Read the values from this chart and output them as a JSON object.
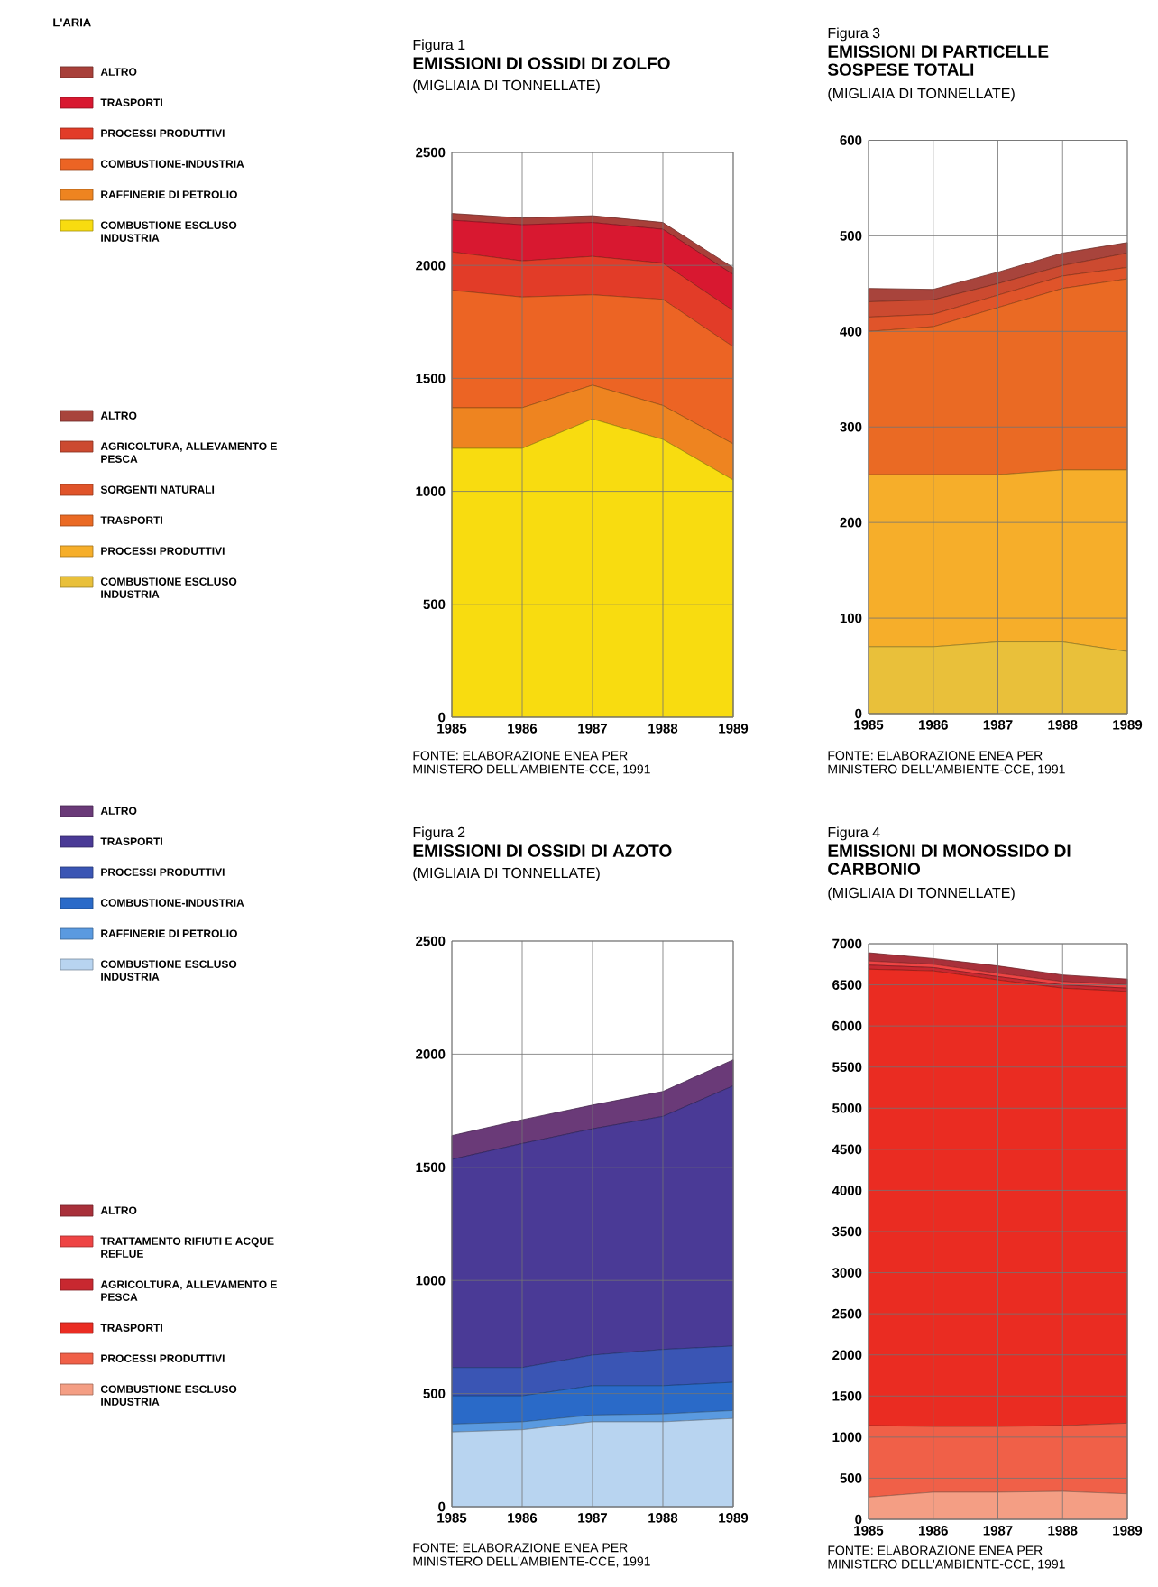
{
  "chart_data": [
    {
      "type": "area",
      "stacked": true,
      "title": "EMISSIONI DI OSSIDI DI ZOLFO",
      "subtitle": "(MIGLIAIA DI TONNELLATE)",
      "annotations": [
        "Figura 1",
        "FONTE: ELABORAZIONE ENEA PER MINISTERO DELL'AMBIENTE-CCE, 1991",
        "L'ARIA"
      ],
      "x": [
        1985,
        1986,
        1987,
        1988,
        1989
      ],
      "xlim": [
        1985,
        1989
      ],
      "xticks": [
        1985,
        1986,
        1987,
        1988,
        1989
      ],
      "ylim": [
        0,
        2500
      ],
      "yticks": [
        0,
        500,
        1000,
        1500,
        2000,
        2500
      ],
      "grid": true,
      "legend": "left",
      "series": [
        {
          "name": "COMBUSTIONE ESCLUSO INDUSTRIA",
          "color": "#f8dc10",
          "values": [
            1190,
            1190,
            1320,
            1230,
            1050
          ]
        },
        {
          "name": "RAFFINERIE DI PETROLIO",
          "color": "#ee8420",
          "values": [
            180,
            180,
            150,
            150,
            160
          ]
        },
        {
          "name": "COMBUSTIONE-INDUSTRIA",
          "color": "#ec6424",
          "values": [
            520,
            490,
            400,
            470,
            430
          ]
        },
        {
          "name": "PROCESSI PRODUTTIVI",
          "color": "#e23c28",
          "values": [
            170,
            160,
            170,
            160,
            160
          ]
        },
        {
          "name": "TRASPORTI",
          "color": "#d81830",
          "values": [
            140,
            160,
            150,
            150,
            160
          ]
        },
        {
          "name": "ALTRO",
          "color": "#a8403a",
          "values": [
            30,
            30,
            30,
            30,
            30
          ]
        }
      ]
    },
    {
      "type": "area",
      "stacked": true,
      "title": "EMISSIONI DI PARTICELLE SOSPESE TOTALI",
      "subtitle": "(MIGLIAIA DI TONNELLATE)",
      "annotations": [
        "Figura 3",
        "FONTE: ELABORAZIONE ENEA PER MINISTERO DELL'AMBIENTE-CCE, 1991"
      ],
      "x": [
        1985,
        1986,
        1987,
        1988,
        1989
      ],
      "xlim": [
        1985,
        1989
      ],
      "xticks": [
        1985,
        1986,
        1987,
        1988,
        1989
      ],
      "ylim": [
        0,
        600
      ],
      "yticks": [
        0,
        100,
        200,
        300,
        400,
        500,
        600
      ],
      "grid": true,
      "legend": "left",
      "series": [
        {
          "name": "COMBUSTIONE ESCLUSO INDUSTRIA",
          "color": "#e9c03a",
          "values": [
            70,
            70,
            75,
            75,
            65
          ]
        },
        {
          "name": "PROCESSI PRODUTTIVI",
          "color": "#f6ae2a",
          "values": [
            180,
            180,
            175,
            180,
            190
          ]
        },
        {
          "name": "TRASPORTI",
          "color": "#ea6a24",
          "values": [
            150,
            155,
            175,
            190,
            200
          ]
        },
        {
          "name": "SORGENTI NATURALI",
          "color": "#e0542a",
          "values": [
            15,
            13,
            13,
            13,
            12
          ]
        },
        {
          "name": "AGRICOLTURA, ALLEVAMENTO E PESCA",
          "color": "#cc4a30",
          "values": [
            16,
            15,
            12,
            11,
            15
          ]
        },
        {
          "name": "ALTRO",
          "color": "#a8443c",
          "values": [
            14,
            11,
            12,
            13,
            11
          ]
        }
      ]
    },
    {
      "type": "area",
      "stacked": true,
      "title": "EMISSIONI DI OSSIDI DI AZOTO",
      "subtitle": "(MIGLIAIA DI TONNELLATE)",
      "annotations": [
        "Figura 2",
        "FONTE: ELABORAZIONE ENEA PER MINISTERO DELL'AMBIENTE-CCE, 1991"
      ],
      "x": [
        1985,
        1986,
        1987,
        1988,
        1989
      ],
      "xlim": [
        1985,
        1989
      ],
      "xticks": [
        1985,
        1986,
        1987,
        1988,
        1989
      ],
      "ylim": [
        0,
        2500
      ],
      "yticks": [
        0,
        500,
        1000,
        1500,
        2000,
        2500
      ],
      "grid": true,
      "legend": "left",
      "series": [
        {
          "name": "COMBUSTIONE ESCLUSO INDUSTRIA",
          "color": "#b8d4f0",
          "values": [
            330,
            340,
            375,
            375,
            390
          ]
        },
        {
          "name": "RAFFINERIE DI PETROLIO",
          "color": "#5a9ae0",
          "values": [
            35,
            35,
            30,
            35,
            35
          ]
        },
        {
          "name": "COMBUSTIONE-INDUSTRIA",
          "color": "#2a6ac8",
          "values": [
            125,
            115,
            130,
            125,
            125
          ]
        },
        {
          "name": "PROCESSI PRODUTTIVI",
          "color": "#3a55b4",
          "values": [
            125,
            125,
            135,
            160,
            160
          ]
        },
        {
          "name": "TRASPORTI",
          "color": "#4a3a96",
          "values": [
            920,
            990,
            1000,
            1030,
            1150
          ]
        },
        {
          "name": "ALTRO",
          "color": "#6a3a78",
          "values": [
            105,
            105,
            105,
            110,
            115
          ]
        }
      ]
    },
    {
      "type": "area",
      "stacked": true,
      "title": "EMISSIONI DI MONOSSIDO DI CARBONIO",
      "subtitle": "(MIGLIAIA DI TONNELLATE)",
      "annotations": [
        "Figura 4",
        "FONTE: ELABORAZIONE ENEA PER MINISTERO DELL'AMBIENTE-CCE, 1991"
      ],
      "x": [
        1985,
        1986,
        1987,
        1988,
        1989
      ],
      "xlim": [
        1985,
        1989
      ],
      "xticks": [
        1985,
        1986,
        1987,
        1988,
        1989
      ],
      "ylim": [
        0,
        7000
      ],
      "yticks": [
        0,
        500,
        1000,
        1500,
        2000,
        2500,
        3000,
        3500,
        4000,
        4500,
        5000,
        5500,
        6000,
        6500,
        7000
      ],
      "grid": true,
      "legend": "left",
      "series": [
        {
          "name": "COMBUSTIONE ESCLUSO INDUSTRIA",
          "color": "#f49e84",
          "values": [
            270,
            330,
            330,
            340,
            310
          ]
        },
        {
          "name": "PROCESSI PRODUTTIVI",
          "color": "#f06048",
          "values": [
            870,
            800,
            800,
            800,
            860
          ]
        },
        {
          "name": "TRASPORTI",
          "color": "#ea2c22",
          "values": [
            5550,
            5540,
            5430,
            5320,
            5250
          ]
        },
        {
          "name": "AGRICOLTURA, ALLEVAMENTO E PESCA",
          "color": "#c82830",
          "values": [
            50,
            40,
            40,
            40,
            40
          ]
        },
        {
          "name": "TRATTAMENTO RIFIUTI E ACQUE REFLUE",
          "color": "#ee4444",
          "values": [
            50,
            40,
            40,
            40,
            40
          ]
        },
        {
          "name": "ALTRO",
          "color": "#a8303a",
          "values": [
            100,
            70,
            90,
            80,
            70
          ]
        }
      ]
    }
  ]
}
